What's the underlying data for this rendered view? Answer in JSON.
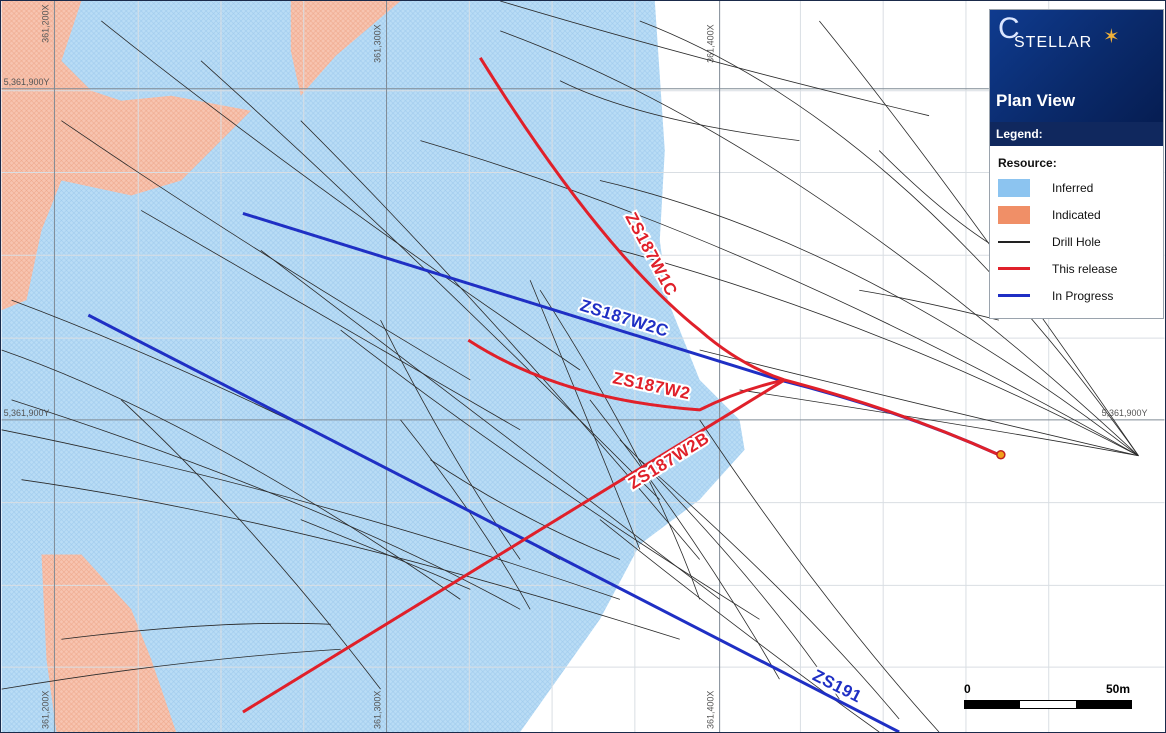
{
  "map": {
    "grid": {
      "x_labels": [
        "361,200X",
        "361,300X",
        "361,400X"
      ],
      "x_labels_bottom": [
        "361,200X",
        "361,300X",
        "361,400X"
      ],
      "y_labels": [
        "5,361,900Y",
        "5,361,900Y",
        "5,361,900Y"
      ]
    },
    "holes": {
      "zs187w1c": "ZS187W1C",
      "zs187w2c": "ZS187W2C",
      "zs187w2": "ZS187W2",
      "zs187w2b": "ZS187W2B",
      "zs191": "ZS191"
    },
    "colors": {
      "inferred": "#a9d2f2",
      "indicated": "#f2a98c",
      "drill_hole": "#333333",
      "this_release": "#e0202a",
      "in_progress": "#1f2fc4"
    }
  },
  "legend": {
    "logo": "STELLAR",
    "title": "Plan View",
    "legend_label": "Legend:",
    "section": "Resource:",
    "items": [
      {
        "label": "Inferred"
      },
      {
        "label": "Indicated"
      },
      {
        "label": "Drill Hole"
      },
      {
        "label": "This release"
      },
      {
        "label": "In Progress"
      }
    ]
  },
  "scalebar": {
    "start": "0",
    "end": "50m"
  }
}
